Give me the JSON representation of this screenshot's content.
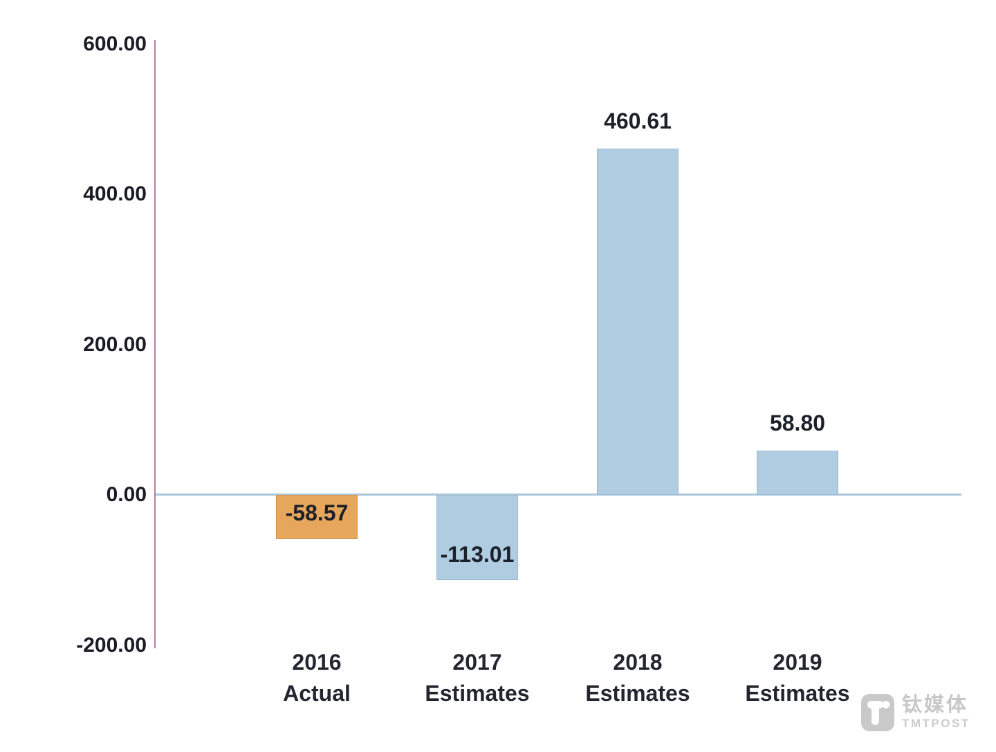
{
  "chart_data": {
    "type": "bar",
    "title": "",
    "xlabel": "",
    "ylabel": "",
    "categories": [
      [
        "2016",
        "Actual"
      ],
      [
        "2017",
        "Estimates"
      ],
      [
        "2018",
        "Estimates"
      ],
      [
        "2019",
        "Estimates"
      ]
    ],
    "values": [
      -58.57,
      -113.01,
      460.61,
      58.8
    ],
    "value_labels": [
      "-58.57",
      "-113.01",
      "460.61",
      "58.80"
    ],
    "bar_colors": [
      "#E6A65B",
      "#AFCCE0",
      "#AFCCE0",
      "#AFCCE0"
    ],
    "bar_border_colors": [
      "#D3954A",
      "#9DBACF",
      "#9DBACF",
      "#9DBACF"
    ],
    "label_placements": [
      "inside-top",
      "inside-bottom",
      "above",
      "above"
    ],
    "y_ticks": [
      600,
      400,
      200,
      0,
      -200
    ],
    "y_tick_labels": [
      "600.00",
      "400.00",
      "200.00",
      "0.00",
      "-200.00"
    ],
    "ylim": [
      -200,
      600
    ],
    "grid": false,
    "legend": false,
    "axis_line_color": "#B3809A",
    "zero_line_color": "#A9C6DA"
  },
  "watermark": {
    "cn": "钛媒体",
    "en": "TMTPOST",
    "icon": "tmtpost-t-logo"
  }
}
